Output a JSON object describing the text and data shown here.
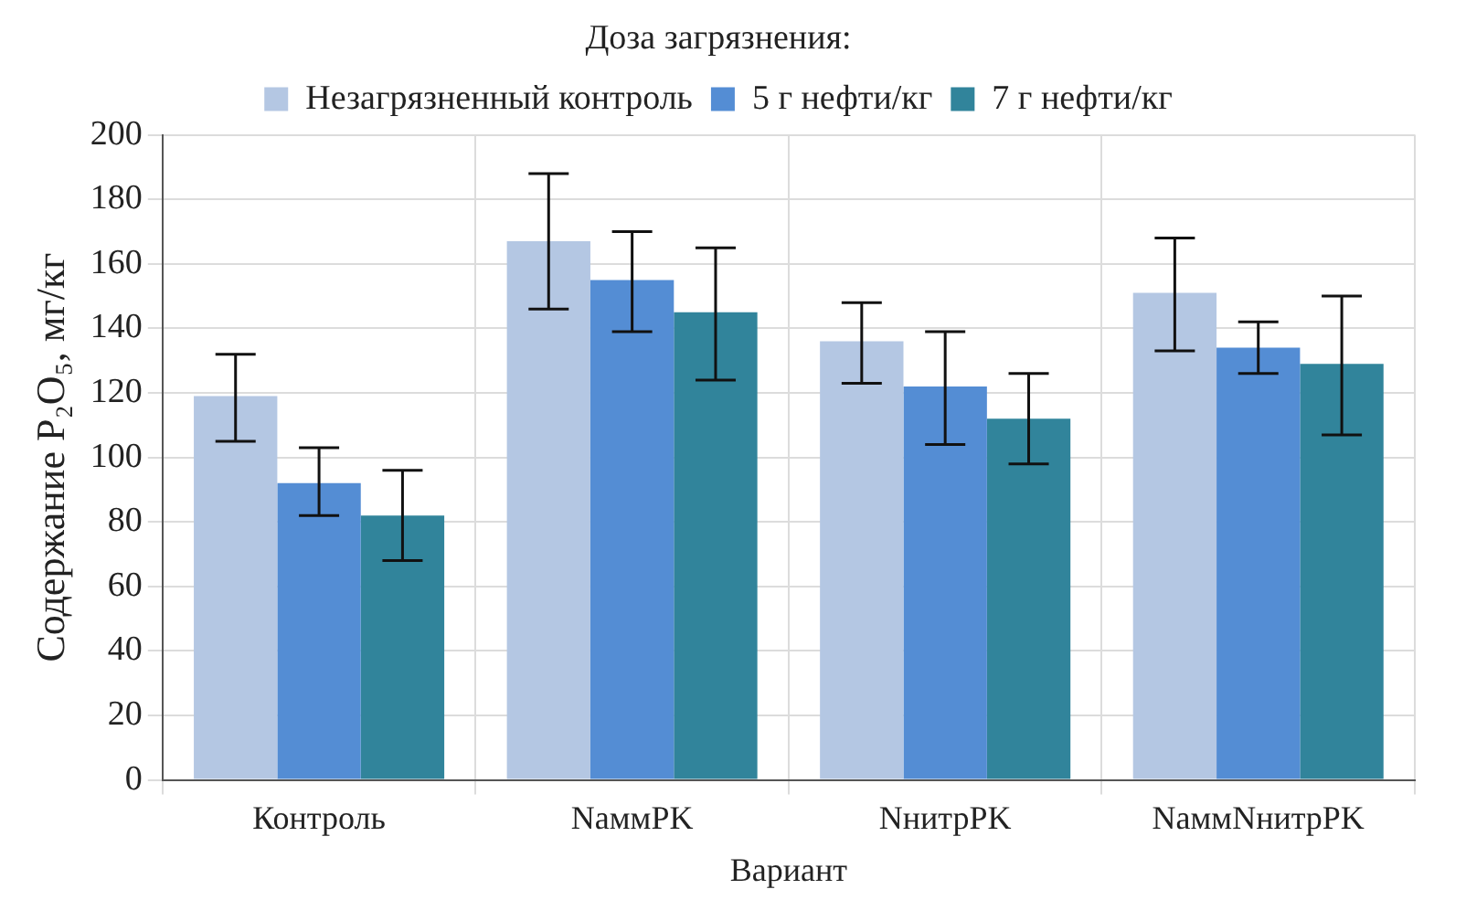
{
  "chart_data": {
    "type": "bar",
    "legend_title": "Доза загрязнения:",
    "legend": "top",
    "xlabel": "Вариант",
    "ylabel": "Содержание P₂O₅, мг/кг",
    "categories": [
      "Контроль",
      "NаммPK",
      "NнитрPK",
      "NаммNнитрPK"
    ],
    "series": [
      {
        "name": "Незагрязненный контроль",
        "color": "#b4c7e3",
        "values": [
          119,
          167,
          136,
          151
        ],
        "errors": [
          [
            105,
            132
          ],
          [
            146,
            188
          ],
          [
            123,
            148
          ],
          [
            133,
            168
          ]
        ]
      },
      {
        "name": "5 г нефти/кг",
        "color": "#548dd4",
        "values": [
          92,
          155,
          122,
          134
        ],
        "errors": [
          [
            82,
            103
          ],
          [
            139,
            170
          ],
          [
            104,
            139
          ],
          [
            126,
            142
          ]
        ]
      },
      {
        "name": "7 г нефти/кг",
        "color": "#31849b",
        "values": [
          82,
          145,
          112,
          129
        ],
        "errors": [
          [
            68,
            96
          ],
          [
            124,
            165
          ],
          [
            98,
            126
          ],
          [
            107,
            150
          ]
        ]
      }
    ],
    "ylim": [
      0,
      200
    ],
    "yticks": [
      0,
      20,
      40,
      60,
      80,
      100,
      120,
      140,
      160,
      180,
      200
    ],
    "grid": true
  }
}
